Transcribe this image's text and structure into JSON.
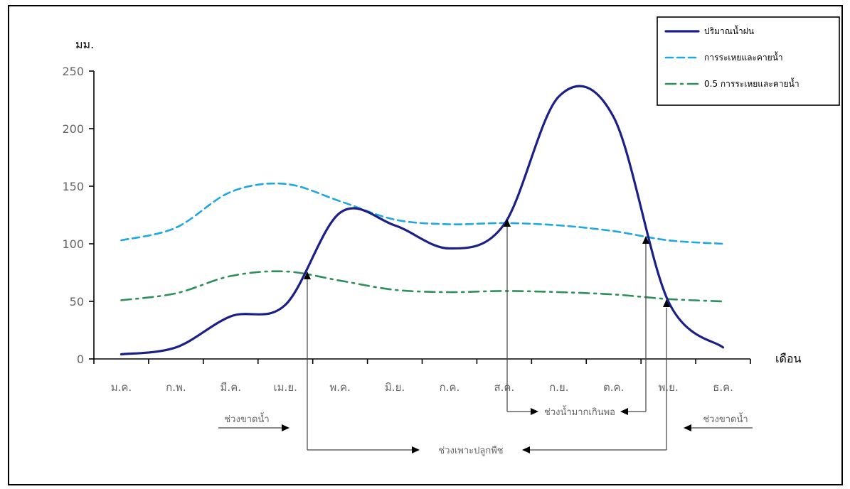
{
  "chart_data": {
    "type": "line",
    "title": "",
    "ylabel": "มม.",
    "xlabel": "เดือน",
    "ylim": [
      0,
      250
    ],
    "yticks": [
      0,
      50,
      100,
      150,
      200,
      250
    ],
    "grid": false,
    "legend_position": "top-right",
    "categories": [
      "ม.ค.",
      "ก.พ.",
      "มี.ค.",
      "เม.ย.",
      "พ.ค.",
      "มิ.ย.",
      "ก.ค.",
      "ส.ค.",
      "ก.ย.",
      "ต.ค.",
      "พ.ย.",
      "ธ.ค."
    ],
    "series": [
      {
        "name": "ปริมาณน้ำฝน",
        "color": "#1b1f8a",
        "style": "solid",
        "values": [
          4,
          10,
          37,
          47,
          127,
          116,
          96,
          117,
          228,
          210,
          50,
          10
        ]
      },
      {
        "name": "การระเหยและคายน้ำ",
        "color": "#1ea7e1",
        "style": "dashed",
        "values": [
          103,
          114,
          145,
          152,
          137,
          121,
          117,
          118,
          116,
          111,
          103,
          100
        ]
      },
      {
        "name": "0.5 การระเหยและคายน้ำ",
        "color": "#2f8f5b",
        "style": "dash-dot",
        "values": [
          51,
          57,
          72,
          76,
          68,
          60,
          58,
          59,
          58,
          56,
          52,
          50
        ]
      }
    ],
    "annotations": {
      "dry_label": "ช่วงขาดน้ำ",
      "surplus_label": "ช่วงน้ำมากเกินพอ",
      "growing_label": "ช่วงเพาะปลูกพืช"
    }
  }
}
